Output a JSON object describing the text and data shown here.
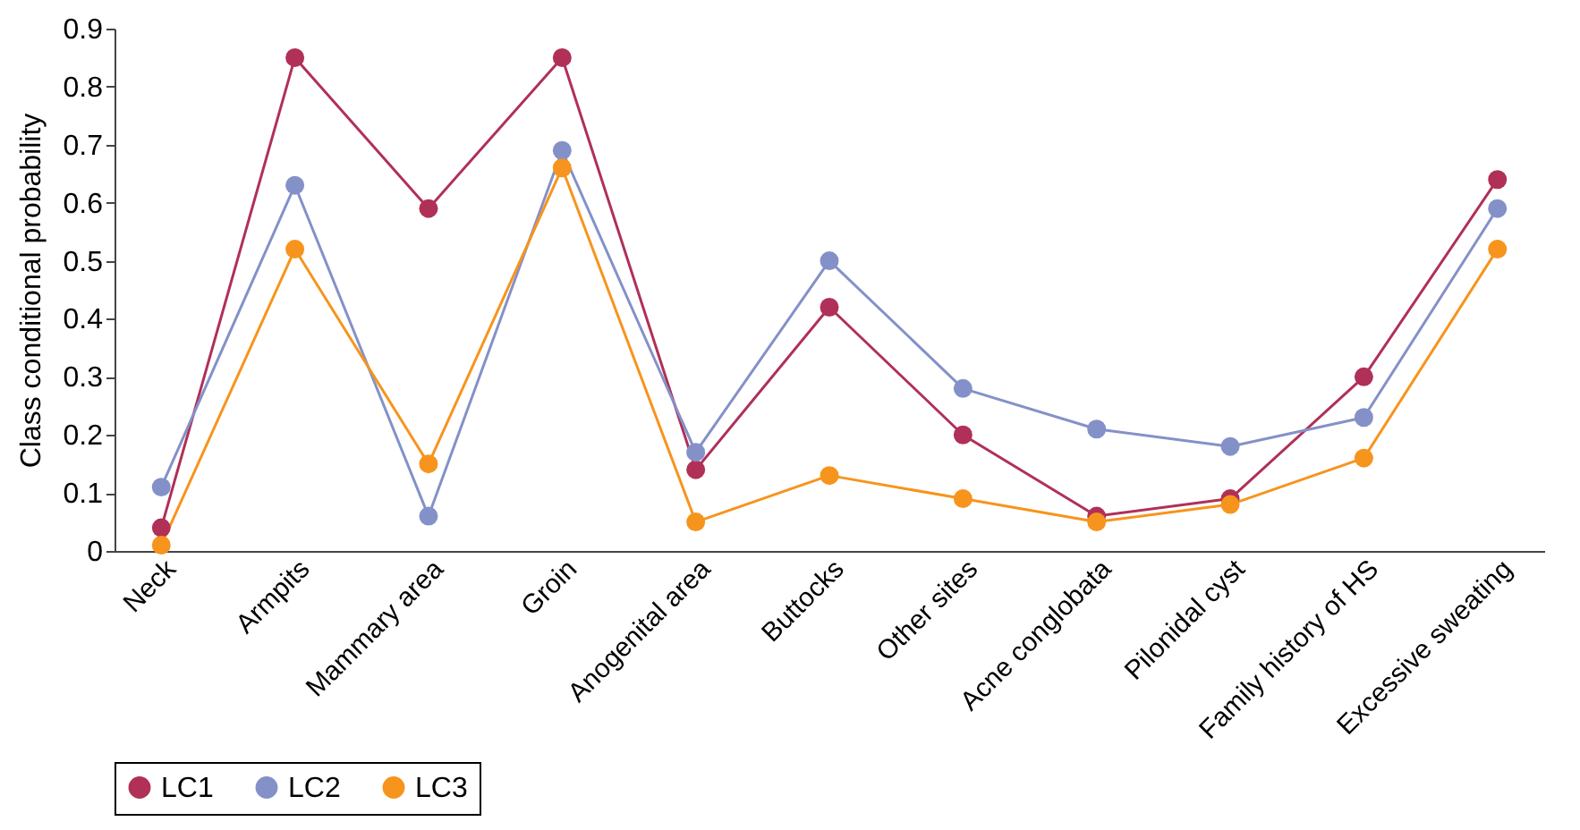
{
  "chart_data": {
    "type": "line",
    "ylabel": "Class conditional probability",
    "categories": [
      "Neck",
      "Armpits",
      "Mammary area",
      "Groin",
      "Anogenital area",
      "Buttocks",
      "Other sites",
      "Acne conglobata",
      "Pilonidal cyst",
      "Family history of HS",
      "Excessive sweating"
    ],
    "series": [
      {
        "name": "LC1",
        "color": "#b03058",
        "values": [
          0.04,
          0.85,
          0.59,
          0.85,
          0.14,
          0.42,
          0.2,
          0.06,
          0.09,
          0.3,
          0.64
        ]
      },
      {
        "name": "LC2",
        "color": "#8491c8",
        "values": [
          0.11,
          0.63,
          0.06,
          0.69,
          0.17,
          0.5,
          0.28,
          0.21,
          0.18,
          0.23,
          0.59
        ]
      },
      {
        "name": "LC3",
        "color": "#f7941d",
        "values": [
          0.01,
          0.52,
          0.15,
          0.66,
          0.05,
          0.13,
          0.09,
          0.05,
          0.08,
          0.16,
          0.52
        ]
      }
    ],
    "ylim": [
      0,
      0.9
    ],
    "yticks": [
      0,
      0.1,
      0.2,
      0.3,
      0.4,
      0.5,
      0.6,
      0.7,
      0.8,
      0.9
    ],
    "grid": false,
    "legend": "bottom",
    "marker": "circle",
    "line_style": "solid"
  }
}
